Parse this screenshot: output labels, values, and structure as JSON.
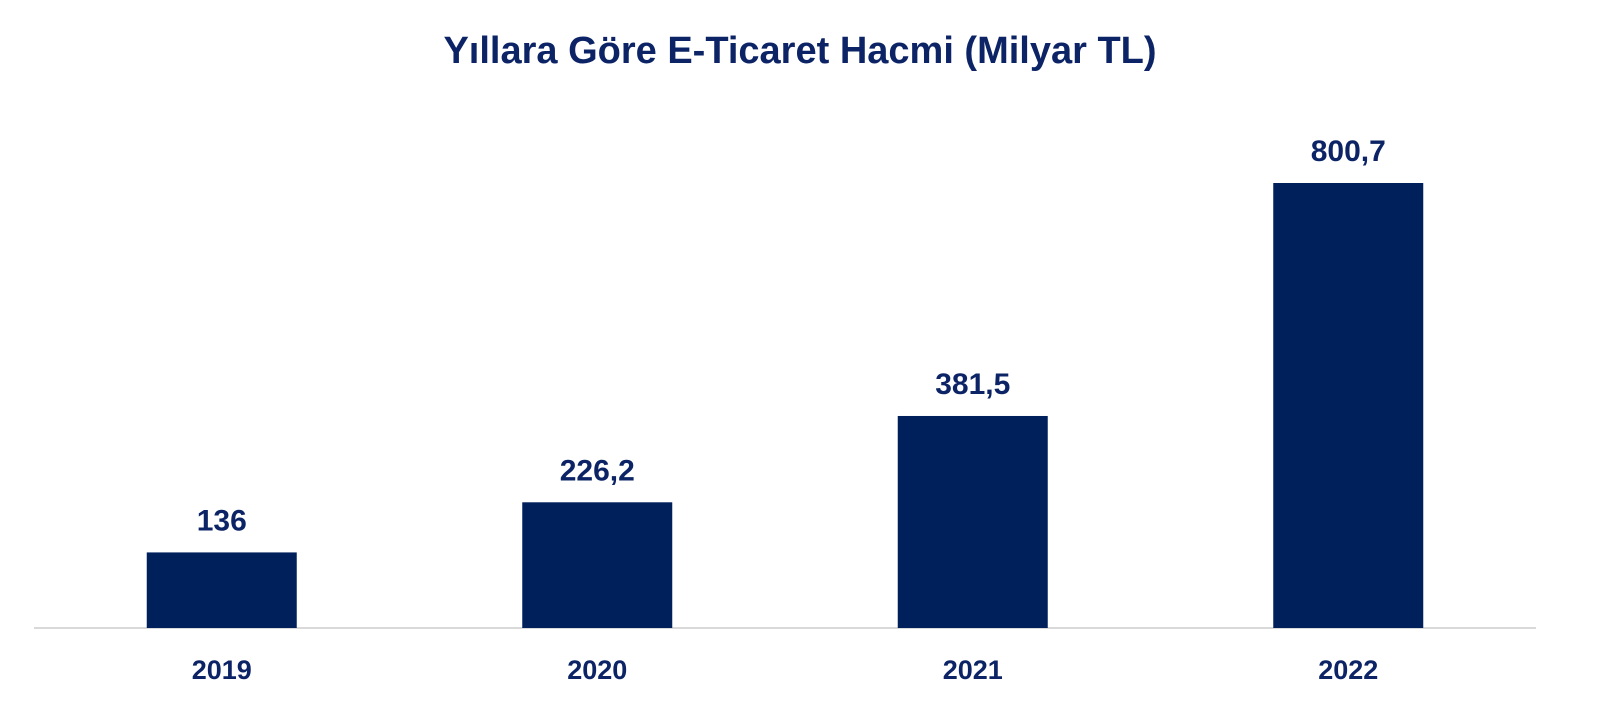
{
  "chart_data": {
    "type": "bar",
    "title": "Yıllara Göre E-Ticaret Hacmi (Milyar TL)",
    "categories": [
      "2019",
      "2020",
      "2021",
      "2022"
    ],
    "values": [
      136,
      226.2,
      381.5,
      800.7
    ],
    "value_labels": [
      "136",
      "226,2",
      "381,5",
      "800,7"
    ],
    "bar_color": "#00205b",
    "axis_color": "#d9d9d9",
    "text_color": "#0c2466",
    "ylim": [
      0,
      800.7
    ],
    "grid": false,
    "legend": "none",
    "xlabel": "",
    "ylabel": ""
  }
}
